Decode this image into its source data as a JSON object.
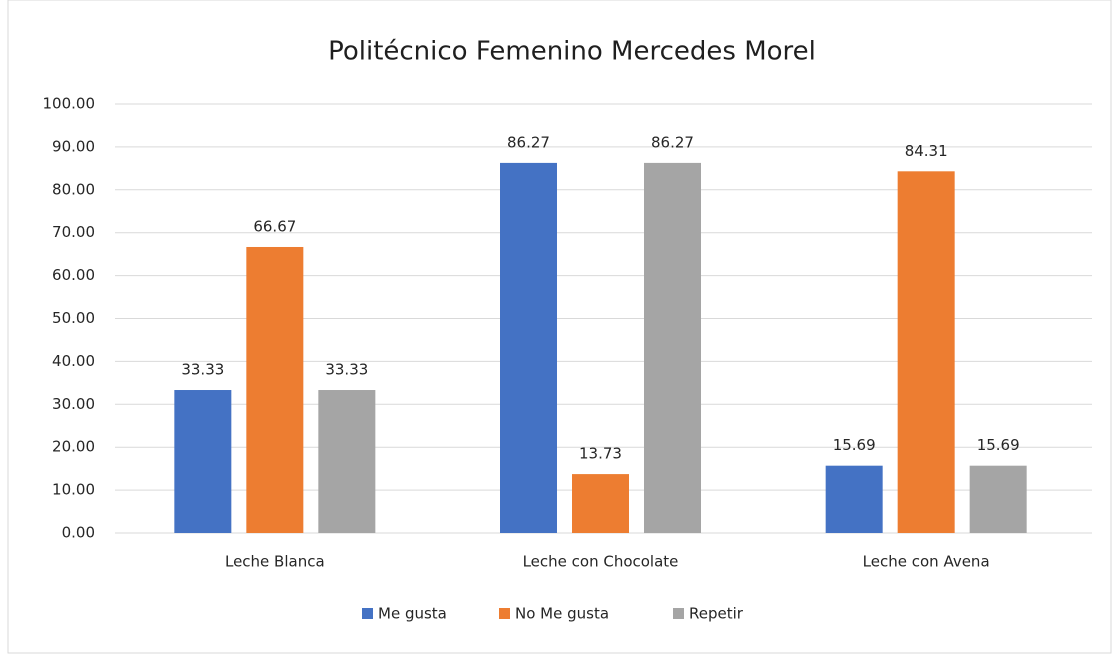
{
  "chart_data": {
    "type": "bar",
    "title": "Politécnico Femenino Mercedes Morel",
    "categories": [
      "Leche Blanca",
      "Leche con Chocolate",
      "Leche con Avena"
    ],
    "series": [
      {
        "name": "Me gusta",
        "color": "#4472c4",
        "values": [
          33.33,
          86.27,
          15.69
        ]
      },
      {
        "name": "No Me gusta",
        "color": "#ed7d31",
        "values": [
          66.67,
          13.73,
          84.31
        ]
      },
      {
        "name": "Repetir",
        "color": "#a5a5a5",
        "values": [
          33.33,
          86.27,
          15.69
        ]
      }
    ],
    "ylim": [
      0,
      100
    ],
    "yticks": [
      {
        "value": 0,
        "label": "0.00"
      },
      {
        "value": 10,
        "label": "10.00"
      },
      {
        "value": 20,
        "label": "20.00"
      },
      {
        "value": 30,
        "label": "30.00"
      },
      {
        "value": 40,
        "label": "40.00"
      },
      {
        "value": 50,
        "label": "50.00"
      },
      {
        "value": 60,
        "label": "60.00"
      },
      {
        "value": 70,
        "label": "70.00"
      },
      {
        "value": 80,
        "label": "80.00"
      },
      {
        "value": 90,
        "label": "90.00"
      },
      {
        "value": 100,
        "label": "100.00"
      }
    ],
    "grid": true,
    "legend": "bottom"
  }
}
